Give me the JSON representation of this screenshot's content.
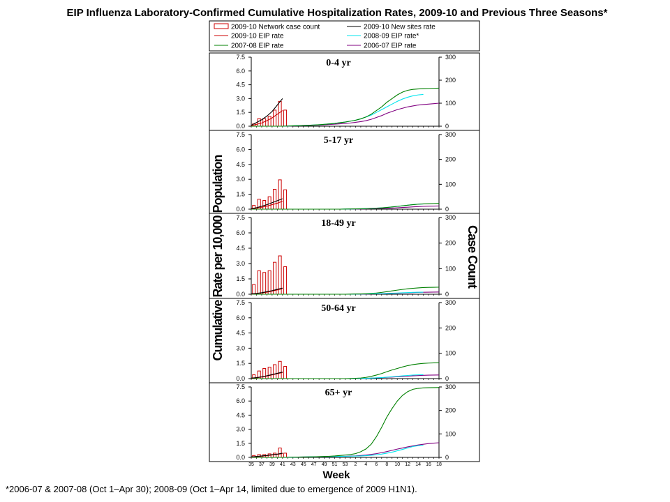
{
  "chart_data": {
    "type": "bar",
    "title": "EIP Influenza Laboratory-Confirmed Cumulative Hospitalization Rates, 2009-10 and Previous Three Seasons*",
    "xlabel": "Week",
    "ylabel": "Cumulative Rate per 10,000 Population",
    "ylabel_right": "Case Count",
    "footnote": "*2006-07 & 2007-08 (Oct 1–Apr 30); 2008-09 (Oct 1–Apr 14, limited due to emergence of 2009 H1N1).",
    "ylim_left": [
      0,
      7.5
    ],
    "ylim_right": [
      0,
      300
    ],
    "y_ticks_left": [
      "0.0",
      "1.5",
      "3.0",
      "4.5",
      "6.0",
      "7.5"
    ],
    "y_ticks_right": [
      "0",
      "100",
      "200",
      "300"
    ],
    "x_tick_labels": [
      "35",
      "37",
      "39",
      "41",
      "43",
      "45",
      "47",
      "49",
      "51",
      "53",
      "2",
      "4",
      "6",
      "8",
      "10",
      "12",
      "14",
      "16",
      "18"
    ],
    "legend": [
      {
        "label": "2009-10 Network case count",
        "color": "#cc0000",
        "kind": "bar"
      },
      {
        "label": "2009-10 New sites rate",
        "color": "#000000",
        "kind": "line"
      },
      {
        "label": "2009-10 EIP rate",
        "color": "#cc0000",
        "kind": "line"
      },
      {
        "label": "2008-09 EIP rate*",
        "color": "#00e5ee",
        "kind": "line"
      },
      {
        "label": "2007-08 EIP rate",
        "color": "#008000",
        "kind": "line"
      },
      {
        "label": "2006-07 EIP rate",
        "color": "#800080",
        "kind": "line"
      }
    ],
    "week_order": [
      35,
      36,
      37,
      38,
      39,
      40,
      41,
      42,
      43,
      44,
      45,
      46,
      47,
      48,
      49,
      50,
      51,
      52,
      53,
      1,
      2,
      3,
      4,
      5,
      6,
      7,
      8,
      9,
      10,
      11,
      12,
      13,
      14,
      15,
      16,
      17,
      18
    ],
    "panels": [
      {
        "label": "0-4 yr",
        "bars": [
          10,
          33,
          33,
          43,
          70,
          108,
          70
        ],
        "series": {
          "new_sites": [
            0.1,
            0.4,
            0.7,
            1.1,
            1.6,
            2.3,
            3.0
          ],
          "eip_2009_10": [
            0.05,
            0.2,
            0.35,
            0.6,
            0.9,
            1.3,
            1.7
          ],
          "eip_2008_09": [
            0,
            0,
            0,
            0,
            0,
            0,
            0,
            0.02,
            0.04,
            0.06,
            0.08,
            0.1,
            0.13,
            0.16,
            0.2,
            0.25,
            0.3,
            0.38,
            0.45,
            0.55,
            0.65,
            0.8,
            1.0,
            1.2,
            1.5,
            1.8,
            2.1,
            2.4,
            2.7,
            2.95,
            3.15,
            3.3,
            3.4,
            3.45
          ],
          "eip_2007_08": [
            0,
            0,
            0,
            0,
            0,
            0,
            0,
            0.02,
            0.04,
            0.06,
            0.08,
            0.1,
            0.13,
            0.16,
            0.2,
            0.25,
            0.3,
            0.38,
            0.45,
            0.55,
            0.65,
            0.8,
            1.0,
            1.3,
            1.7,
            2.1,
            2.6,
            3.0,
            3.4,
            3.7,
            3.9,
            4.0,
            4.05,
            4.08,
            4.1,
            4.12,
            4.13
          ],
          "eip_2006_07": [
            0,
            0,
            0,
            0,
            0,
            0,
            0,
            0.02,
            0.03,
            0.05,
            0.06,
            0.08,
            0.1,
            0.12,
            0.15,
            0.18,
            0.22,
            0.26,
            0.3,
            0.35,
            0.42,
            0.5,
            0.6,
            0.75,
            0.95,
            1.15,
            1.4,
            1.6,
            1.8,
            1.95,
            2.1,
            2.2,
            2.3,
            2.35,
            2.4,
            2.45,
            2.5
          ]
        }
      },
      {
        "label": "5-17 yr",
        "bars": [
          15,
          40,
          35,
          50,
          80,
          118,
          78
        ],
        "series": {
          "new_sites": [
            0.05,
            0.15,
            0.3,
            0.45,
            0.65,
            0.85,
            1.05
          ],
          "eip_2009_10": [
            0.03,
            0.1,
            0.2,
            0.3,
            0.45,
            0.6,
            0.8
          ],
          "eip_2008_09": [
            0,
            0,
            0,
            0,
            0,
            0,
            0,
            0,
            0,
            0,
            0,
            0,
            0,
            0,
            0,
            0,
            0,
            0,
            0.01,
            0.02,
            0.03,
            0.04,
            0.06,
            0.08,
            0.1,
            0.13,
            0.17,
            0.22,
            0.28,
            0.34,
            0.4,
            0.46,
            0.5,
            0.52
          ],
          "eip_2007_08": [
            0,
            0,
            0,
            0,
            0,
            0,
            0,
            0,
            0,
            0,
            0,
            0,
            0,
            0,
            0,
            0,
            0,
            0,
            0.01,
            0.02,
            0.03,
            0.04,
            0.06,
            0.08,
            0.1,
            0.13,
            0.17,
            0.22,
            0.28,
            0.34,
            0.4,
            0.45,
            0.5,
            0.53,
            0.55,
            0.57,
            0.58
          ],
          "eip_2006_07": [
            0,
            0,
            0,
            0,
            0,
            0,
            0,
            0,
            0,
            0,
            0,
            0,
            0,
            0,
            0,
            0,
            0,
            0,
            0,
            0.01,
            0.01,
            0.02,
            0.03,
            0.04,
            0.05,
            0.07,
            0.09,
            0.11,
            0.14,
            0.17,
            0.2,
            0.23,
            0.26,
            0.28,
            0.3,
            0.31,
            0.32
          ]
        }
      },
      {
        "label": "18-49 yr",
        "bars": [
          38,
          92,
          85,
          92,
          125,
          150,
          108
        ],
        "series": {
          "new_sites": [
            0.03,
            0.08,
            0.15,
            0.25,
            0.35,
            0.48,
            0.6
          ],
          "eip_2009_10": [
            0.02,
            0.06,
            0.12,
            0.2,
            0.3,
            0.42,
            0.55
          ],
          "eip_2008_09": [
            0,
            0,
            0,
            0,
            0,
            0,
            0,
            0,
            0,
            0,
            0,
            0,
            0,
            0,
            0,
            0,
            0,
            0,
            0,
            0,
            0.01,
            0.02,
            0.03,
            0.04,
            0.05,
            0.06,
            0.08,
            0.1,
            0.12,
            0.14,
            0.16,
            0.18,
            0.19,
            0.2
          ],
          "eip_2007_08": [
            0,
            0,
            0,
            0,
            0,
            0,
            0,
            0,
            0,
            0,
            0,
            0,
            0,
            0,
            0,
            0,
            0,
            0,
            0,
            0.01,
            0.02,
            0.03,
            0.05,
            0.08,
            0.12,
            0.18,
            0.25,
            0.33,
            0.4,
            0.47,
            0.53,
            0.58,
            0.62,
            0.65,
            0.67,
            0.68,
            0.69
          ],
          "eip_2006_07": [
            0,
            0,
            0,
            0,
            0,
            0,
            0,
            0,
            0,
            0,
            0,
            0,
            0,
            0,
            0,
            0,
            0,
            0,
            0,
            0,
            0.01,
            0.01,
            0.02,
            0.03,
            0.04,
            0.05,
            0.06,
            0.08,
            0.1,
            0.12,
            0.14,
            0.16,
            0.18,
            0.19,
            0.2,
            0.21,
            0.22
          ]
        }
      },
      {
        "label": "50-64 yr",
        "bars": [
          15,
          30,
          40,
          45,
          55,
          68,
          48
        ],
        "series": {
          "new_sites": [
            0.05,
            0.1,
            0.18,
            0.28,
            0.4,
            0.52,
            0.65
          ],
          "eip_2009_10": [
            0.03,
            0.08,
            0.15,
            0.25,
            0.36,
            0.48,
            0.6
          ],
          "eip_2008_09": [
            0,
            0,
            0,
            0,
            0,
            0,
            0,
            0,
            0,
            0,
            0,
            0,
            0,
            0,
            0,
            0,
            0,
            0,
            0,
            0,
            0.01,
            0.02,
            0.03,
            0.05,
            0.07,
            0.1,
            0.14,
            0.18,
            0.22,
            0.27,
            0.31,
            0.35,
            0.37,
            0.38
          ],
          "eip_2007_08": [
            0,
            0,
            0,
            0,
            0,
            0,
            0,
            0,
            0,
            0,
            0,
            0,
            0,
            0,
            0,
            0,
            0,
            0,
            0,
            0.01,
            0.03,
            0.06,
            0.12,
            0.22,
            0.35,
            0.5,
            0.68,
            0.85,
            1.0,
            1.15,
            1.28,
            1.38,
            1.45,
            1.5,
            1.53,
            1.55,
            1.56
          ],
          "eip_2006_07": [
            0,
            0,
            0,
            0,
            0,
            0,
            0,
            0,
            0,
            0,
            0,
            0,
            0,
            0,
            0,
            0,
            0,
            0,
            0,
            0,
            0.01,
            0.02,
            0.03,
            0.05,
            0.07,
            0.09,
            0.12,
            0.15,
            0.18,
            0.21,
            0.24,
            0.27,
            0.3,
            0.32,
            0.34,
            0.35,
            0.36
          ]
        }
      },
      {
        "label": "65+ yr",
        "bars": [
          8,
          12,
          12,
          15,
          18,
          40,
          18
        ],
        "series": {
          "new_sites": [
            0.05,
            0.1,
            0.15,
            0.2,
            0.28,
            0.35,
            0.45
          ],
          "eip_2009_10": [
            0.03,
            0.08,
            0.12,
            0.18,
            0.25,
            0.32,
            0.4
          ],
          "eip_2008_09": [
            0,
            0,
            0,
            0,
            0,
            0,
            0,
            0.01,
            0.02,
            0.03,
            0.04,
            0.05,
            0.06,
            0.07,
            0.08,
            0.09,
            0.1,
            0.11,
            0.12,
            0.13,
            0.14,
            0.15,
            0.18,
            0.22,
            0.28,
            0.35,
            0.45,
            0.55,
            0.7,
            0.85,
            1.0,
            1.15,
            1.25,
            1.3
          ],
          "eip_2007_08": [
            0,
            0,
            0,
            0,
            0,
            0,
            0,
            0.01,
            0.02,
            0.03,
            0.04,
            0.05,
            0.06,
            0.08,
            0.1,
            0.12,
            0.15,
            0.2,
            0.25,
            0.3,
            0.4,
            0.6,
            0.9,
            1.4,
            2.2,
            3.2,
            4.3,
            5.2,
            6.0,
            6.6,
            7.0,
            7.25,
            7.35,
            7.4,
            7.42,
            7.43,
            7.44
          ],
          "eip_2006_07": [
            0,
            0,
            0,
            0,
            0,
            0,
            0,
            0.01,
            0.02,
            0.03,
            0.04,
            0.05,
            0.06,
            0.07,
            0.08,
            0.09,
            0.1,
            0.11,
            0.12,
            0.14,
            0.16,
            0.2,
            0.25,
            0.32,
            0.4,
            0.5,
            0.62,
            0.75,
            0.88,
            1.0,
            1.12,
            1.22,
            1.32,
            1.4,
            1.47,
            1.52,
            1.56
          ]
        }
      }
    ]
  }
}
